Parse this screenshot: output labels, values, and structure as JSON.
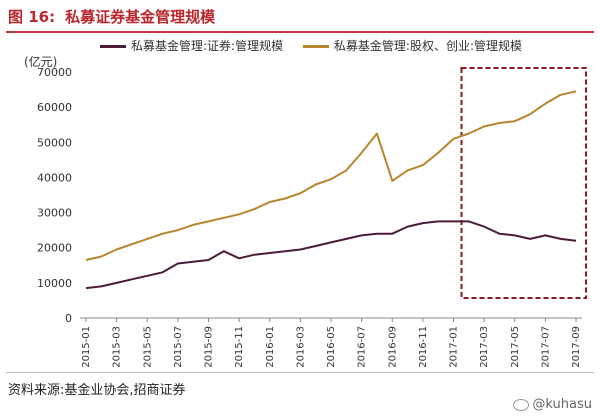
{
  "figure": {
    "title_label": "图 16:",
    "title_text": "私募证券基金管理规模"
  },
  "source_note": "资料来源:基金业协会,招商证券",
  "watermark": "@kuhasu",
  "colors": {
    "securities": "#4b1c3a",
    "equity": "#b7862f",
    "highlight_box": "#8b1a1a",
    "title": "#b8282e"
  },
  "chart_data": {
    "type": "line",
    "unit_label": "(亿元)",
    "ylim": [
      0,
      70000
    ],
    "yticks": [
      0,
      10000,
      20000,
      30000,
      40000,
      50000,
      60000,
      70000
    ],
    "grid": false,
    "legend_position": "top",
    "x": [
      "2015-01",
      "2015-02",
      "2015-03",
      "2015-04",
      "2015-05",
      "2015-06",
      "2015-07",
      "2015-08",
      "2015-09",
      "2015-10",
      "2015-11",
      "2015-12",
      "2016-01",
      "2016-02",
      "2016-03",
      "2016-04",
      "2016-05",
      "2016-06",
      "2016-07",
      "2016-08",
      "2016-09",
      "2016-10",
      "2016-11",
      "2016-12",
      "2017-01",
      "2017-02",
      "2017-03",
      "2017-04",
      "2017-05",
      "2017-06",
      "2017-07",
      "2017-08",
      "2017-09"
    ],
    "x_tick_labels": [
      "2015-01",
      "2015-03",
      "2015-05",
      "2015-07",
      "2015-09",
      "2015-11",
      "2016-01",
      "2016-03",
      "2016-05",
      "2016-07",
      "2016-09",
      "2016-11",
      "2017-01",
      "2017-03",
      "2017-05",
      "2017-07",
      "2017-09"
    ],
    "series": [
      {
        "name": "私募基金管理:证券:管理规模",
        "color": "#4b1c3a",
        "values": [
          8500,
          9000,
          10000,
          11000,
          12000,
          13000,
          15500,
          16000,
          16500,
          19000,
          17000,
          18000,
          18500,
          19000,
          19500,
          20500,
          21500,
          22500,
          23500,
          24000,
          24000,
          26000,
          27000,
          27500,
          27500,
          27500,
          26000,
          24000,
          23500,
          22500,
          23500,
          22500,
          22000
        ]
      },
      {
        "name": "私募基金管理:股权、创业:管理规模",
        "color": "#b7862f",
        "values": [
          16500,
          17500,
          19500,
          21000,
          22500,
          24000,
          25000,
          26500,
          27500,
          28500,
          29500,
          31000,
          33000,
          34000,
          35500,
          38000,
          39500,
          42000,
          47000,
          52500,
          39000,
          42000,
          43500,
          47000,
          51000,
          52500,
          54500,
          55500,
          56000,
          58000,
          61000,
          63500,
          64500
        ]
      }
    ],
    "highlight_range": [
      "2017-01",
      "2017-09"
    ]
  }
}
